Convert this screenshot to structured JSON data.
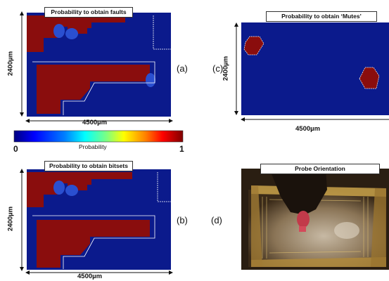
{
  "panels": {
    "a": {
      "title": "Probability to obtain faults",
      "label": "(a)",
      "width_label": "4500µm",
      "height_label": "2400µm"
    },
    "b": {
      "title": "Probability to obtain bitsets",
      "label": "(b)",
      "width_label": "4500µm",
      "height_label": "2400µm"
    },
    "c": {
      "title": "Probability to obtain ‘Mutes’",
      "label": "(c)",
      "width_label": "4500µm",
      "height_label": "2400µm"
    },
    "d": {
      "title": "Probe Orientation",
      "label": "(d)"
    }
  },
  "colorbar": {
    "label": "Probability",
    "min_label": "0",
    "max_label": "1",
    "stops": [
      "#00007f",
      "#0000ff",
      "#007fff",
      "#00ffff",
      "#7fff7f",
      "#ffff00",
      "#ff7f00",
      "#ff0000",
      "#7f0000"
    ]
  },
  "colors": {
    "background_blue": "#0b1a8c",
    "hot_red": "#8a0d0d",
    "mid_blue": "#2a4fd0"
  }
}
